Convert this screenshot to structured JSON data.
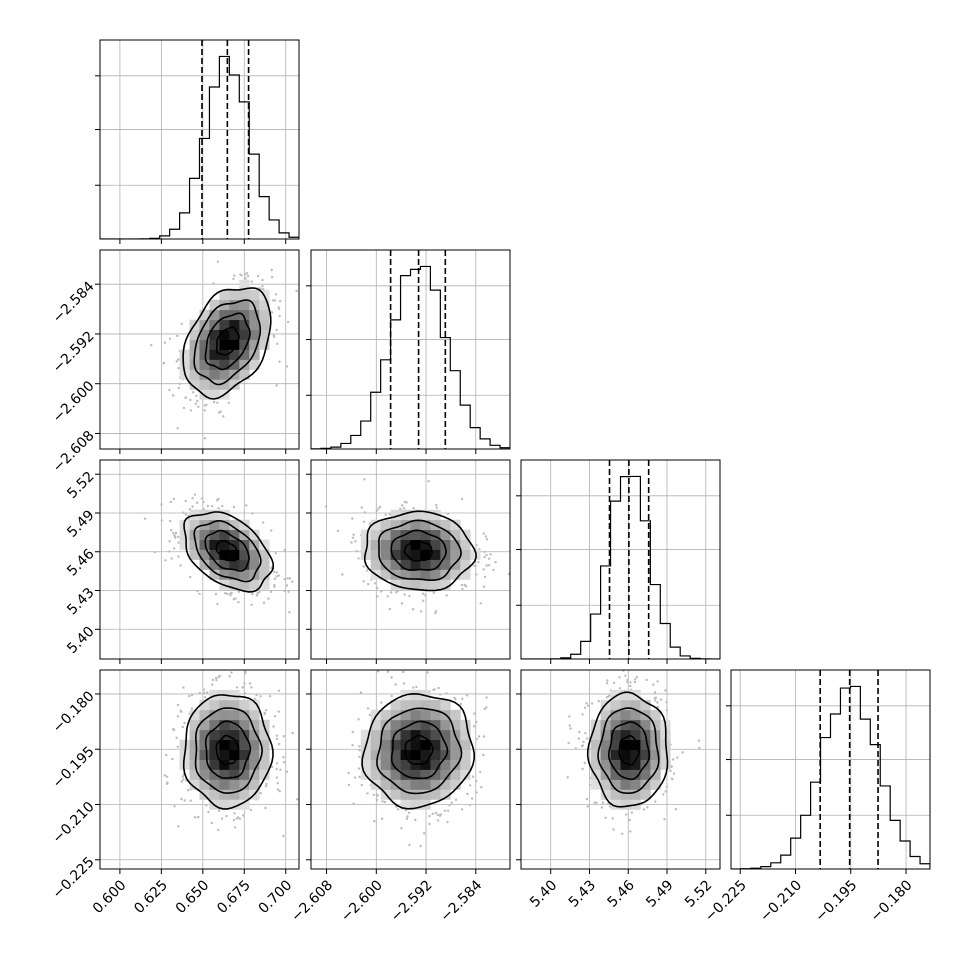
{
  "chart_data": {
    "type": "corner",
    "parameters": [
      {
        "range": [
          0.588,
          0.708
        ],
        "ticks": [
          "0.600",
          "0.625",
          "0.650",
          "0.675",
          "0.700"
        ],
        "tick_values": [
          0.6,
          0.625,
          0.65,
          0.675,
          0.7
        ],
        "quantiles": [
          0.6495,
          0.6648,
          0.6776
        ],
        "mean": 0.6648,
        "sd": 0.0132
      },
      {
        "range": [
          -2.6105,
          -2.5785
        ],
        "ticks": [
          "−2.608",
          "−2.600",
          "−2.592",
          "−2.584"
        ],
        "tick_values": [
          -2.608,
          -2.6,
          -2.592,
          -2.584
        ],
        "quantiles": [
          -2.5977,
          -2.5932,
          -2.5889
        ],
        "mean": -2.5932,
        "sd": 0.0044
      },
      {
        "range": [
          5.377,
          5.531
        ],
        "ticks": [
          "5.40",
          "5.43",
          "5.46",
          "5.49",
          "5.52"
        ],
        "tick_values": [
          5.4,
          5.43,
          5.46,
          5.49,
          5.52
        ],
        "quantiles": [
          5.4455,
          5.4605,
          5.4758
        ],
        "mean": 5.4605,
        "sd": 0.0152
      },
      {
        "range": [
          -0.2275,
          -0.1735
        ],
        "ticks": [
          "−0.225",
          "−0.210",
          "−0.195",
          "−0.180"
        ],
        "tick_values": [
          -0.225,
          -0.21,
          -0.195,
          -0.18
        ],
        "quantiles": [
          -0.2033,
          -0.1953,
          -0.1876
        ],
        "mean": -0.1953,
        "sd": 0.0077
      }
    ],
    "correlations": [
      [
        1,
        0.35,
        -0.4,
        0
      ],
      [
        0.35,
        1,
        -0.05,
        0.05
      ],
      [
        -0.4,
        -0.05,
        1,
        0
      ],
      [
        0,
        0.05,
        0,
        1
      ]
    ],
    "grid": true,
    "bins": 20,
    "colors": {
      "line": "#000000",
      "grid": "#b0b0b0",
      "samples": "#bdbdbd",
      "density_dark": "#000000"
    }
  }
}
